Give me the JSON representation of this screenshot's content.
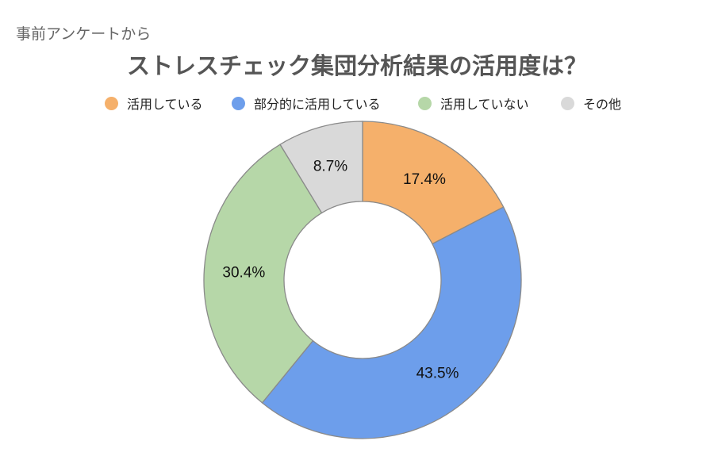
{
  "chart_data": {
    "type": "pie",
    "subtitle": "事前アンケートから",
    "title": "ストレスチェック集団分析結果の活用度は？",
    "legend_position": "top",
    "donut": true,
    "categories": [
      "活用している",
      "部分的に活用している",
      "活用していない",
      "その他"
    ],
    "values": [
      17.4,
      43.5,
      30.4,
      8.7
    ],
    "labels": [
      "17.4%",
      "43.5%",
      "30.4%",
      "8.7%"
    ],
    "colors": [
      "#F5B06B",
      "#6D9EEB",
      "#B6D7A8",
      "#D9D9D9"
    ]
  }
}
